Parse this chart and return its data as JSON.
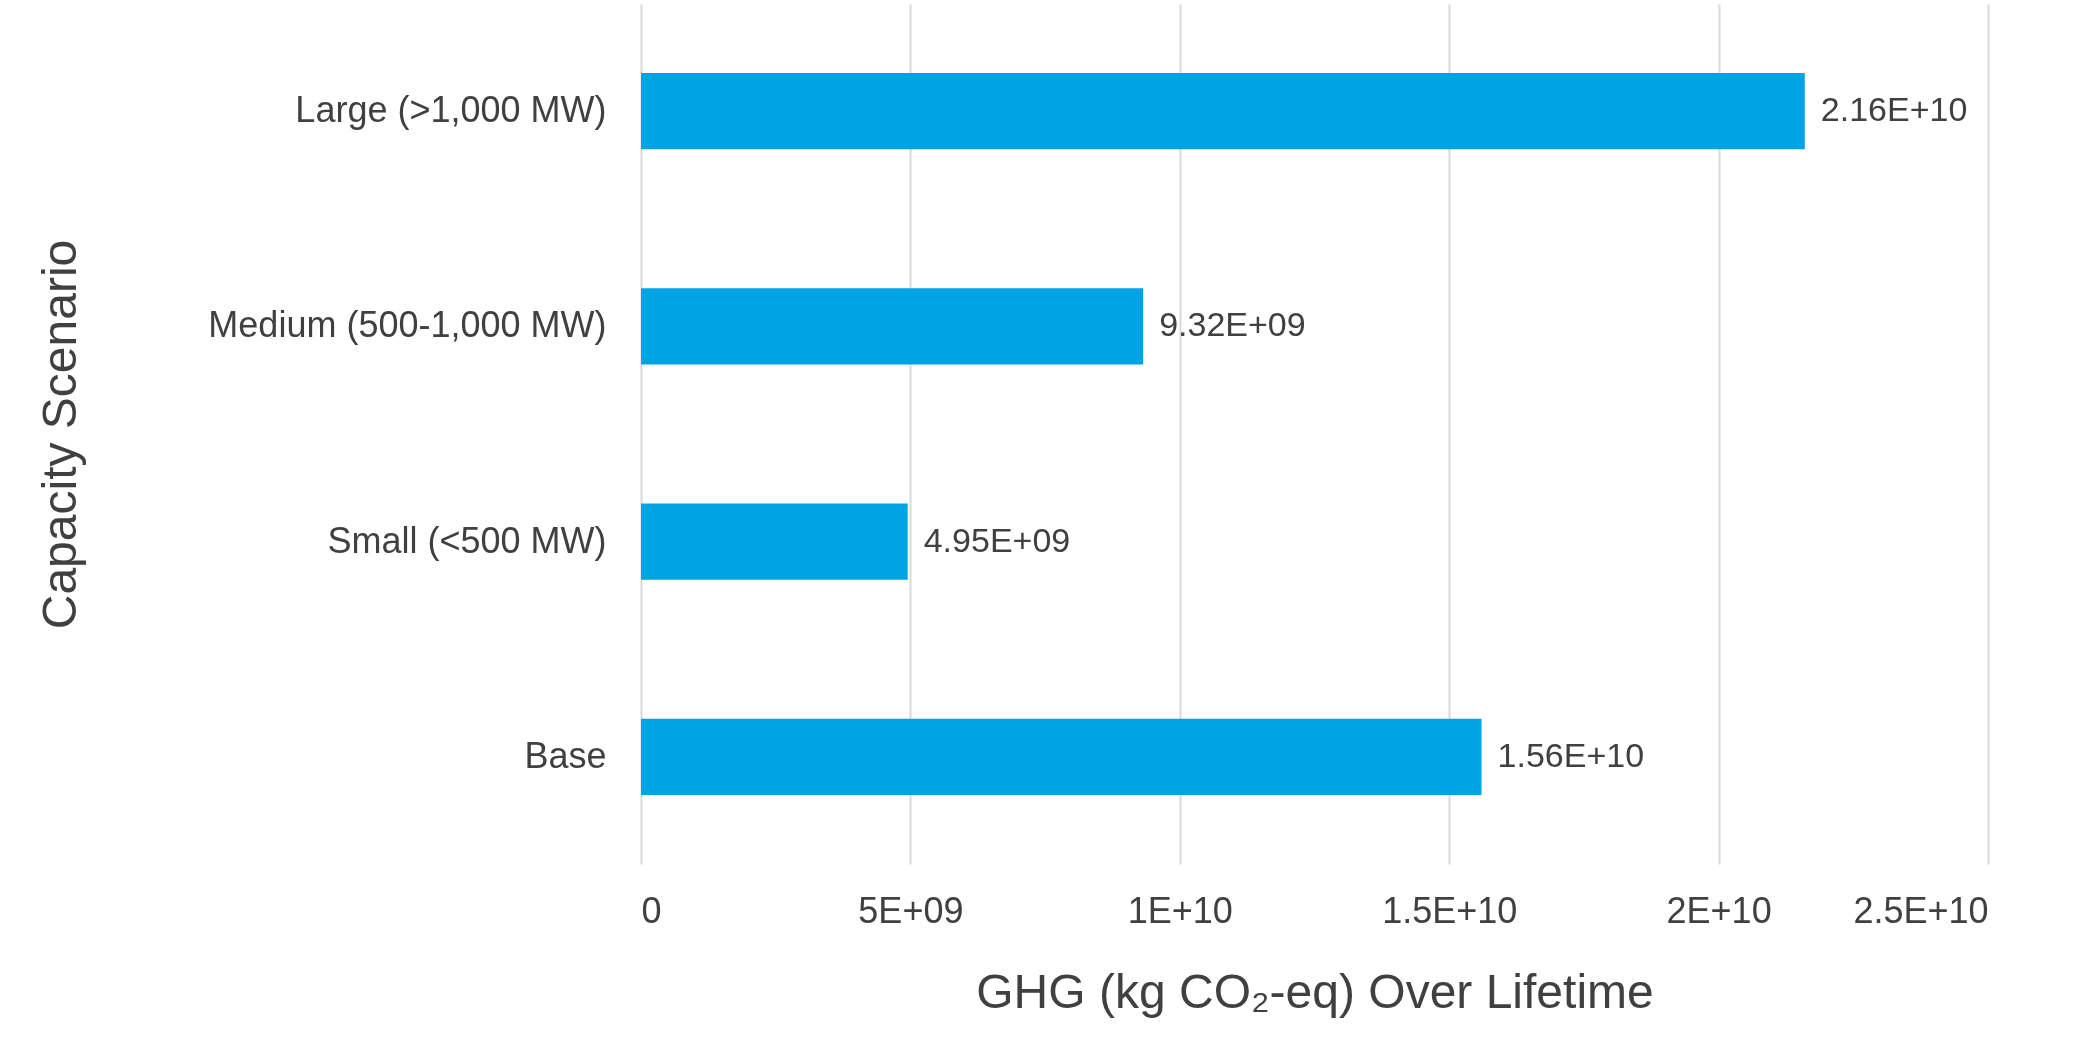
{
  "chart_data": {
    "type": "bar",
    "orientation": "horizontal",
    "xlabel": "GHG (kg CO₂-eq) Over Lifetime",
    "ylabel": "Capacity Scenario",
    "categories": [
      "Large (>1,000 MW)",
      "Medium (500-1,000 MW)",
      "Small (<500 MW)",
      "Base"
    ],
    "values": [
      21600000000.0,
      9320000000.0,
      4950000000.0,
      15600000000.0
    ],
    "value_labels": [
      "2.16E+10",
      "9.32E+09",
      "4.95E+09",
      "1.56E+10"
    ],
    "color": "#00a3e3",
    "xlim": [
      0,
      25000000000.0
    ],
    "xticks": [
      0,
      {
        "value": 5000000000.0,
        "label": "5E+09"
      },
      {
        "value": 10000000000.0,
        "label": "1E+10"
      },
      {
        "value": 15000000000.0,
        "label": "1.5E+10"
      },
      {
        "value": 20000000000.0,
        "label": "2E+10"
      },
      {
        "value": 25000000000.0,
        "label": "2.5E+10"
      }
    ],
    "grid": "x"
  }
}
